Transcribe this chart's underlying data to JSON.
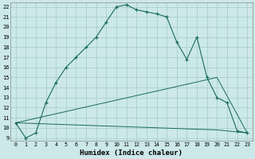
{
  "xlabel": "Humidex (Indice chaleur)",
  "bg_color": "#cce8e8",
  "grid_color": "#aacfcf",
  "line_color": "#1a6b5a",
  "xlim": [
    -0.5,
    23.5
  ],
  "ylim": [
    8.7,
    22.4
  ],
  "xticks": [
    0,
    1,
    2,
    3,
    4,
    5,
    6,
    7,
    8,
    9,
    10,
    11,
    12,
    13,
    14,
    15,
    16,
    17,
    18,
    19,
    20,
    21,
    22,
    23
  ],
  "yticks": [
    9,
    10,
    11,
    12,
    13,
    14,
    15,
    16,
    17,
    18,
    19,
    20,
    21,
    22
  ],
  "curve_x": [
    0,
    1,
    2,
    3,
    4,
    5,
    6,
    7,
    8,
    9,
    10,
    11,
    12,
    13,
    14,
    15,
    16,
    17,
    18,
    19,
    20,
    21,
    22,
    23
  ],
  "curve_y": [
    10.5,
    9.0,
    9.5,
    12.5,
    14.5,
    16.0,
    17.0,
    18.0,
    19.0,
    20.5,
    22.0,
    22.2,
    21.7,
    21.5,
    21.3,
    21.0,
    18.5,
    16.8,
    19.0,
    15.0,
    13.0,
    12.5,
    9.7,
    9.5
  ],
  "diag_line_x": [
    0,
    20,
    23
  ],
  "diag_line_y": [
    10.5,
    15.0,
    9.5
  ],
  "flat_line_x": [
    0,
    20,
    23
  ],
  "flat_line_y": [
    10.5,
    9.8,
    9.5
  ],
  "marker_x": [
    0,
    1,
    3,
    4,
    5,
    6,
    7,
    8,
    9,
    10,
    11,
    12,
    13,
    14,
    15,
    16,
    17,
    18,
    19,
    20,
    21,
    22,
    23
  ],
  "marker_y": [
    10.5,
    9.0,
    12.5,
    14.5,
    16.0,
    17.0,
    18.0,
    19.0,
    20.5,
    22.0,
    22.2,
    21.7,
    21.5,
    21.3,
    21.0,
    18.5,
    16.8,
    19.0,
    15.0,
    13.0,
    12.5,
    9.7,
    9.5
  ]
}
